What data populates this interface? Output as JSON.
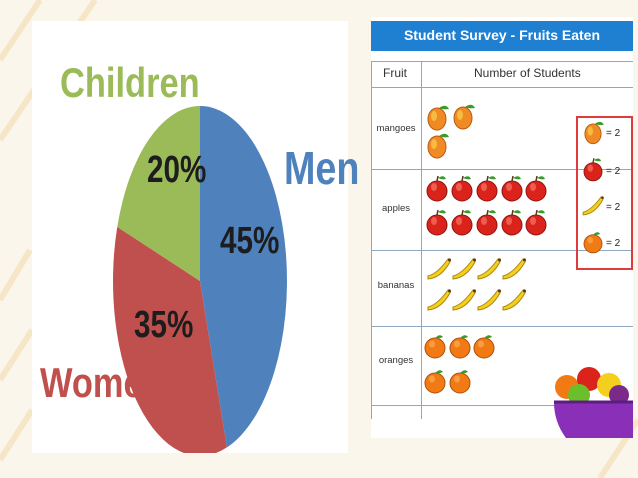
{
  "charts": {
    "pie": {
      "labels": {
        "children": "Children",
        "men": "Men",
        "women": "Women"
      },
      "percent_labels": {
        "children": "20%",
        "men": "45%",
        "women": "35%"
      }
    },
    "pictograph": {
      "title": "Student Survey - Fruits Eaten",
      "col_fruit": "Fruit",
      "col_count": "Number of Students",
      "rows": [
        {
          "label": "mangoes"
        },
        {
          "label": "apples"
        },
        {
          "label": "bananas"
        },
        {
          "label": "oranges"
        }
      ],
      "key_labels": [
        "= 2",
        "= 2",
        "= 2",
        "= 2"
      ]
    }
  },
  "chart_data": [
    {
      "type": "pie",
      "categories": [
        "Men",
        "Women",
        "Children"
      ],
      "values": [
        45,
        35,
        20
      ],
      "colors": [
        "#4f81bd",
        "#c0504d",
        "#9bbb59"
      ]
    },
    {
      "type": "bar",
      "title": "Student Survey - Fruits Eaten",
      "xlabel": "Fruit",
      "ylabel": "Number of Students",
      "categories": [
        "mangoes",
        "apples",
        "bananas",
        "oranges"
      ],
      "values": [
        6,
        20,
        16,
        10
      ],
      "symbol_counts": [
        3,
        10,
        8,
        5
      ],
      "symbol_value": 2
    }
  ]
}
